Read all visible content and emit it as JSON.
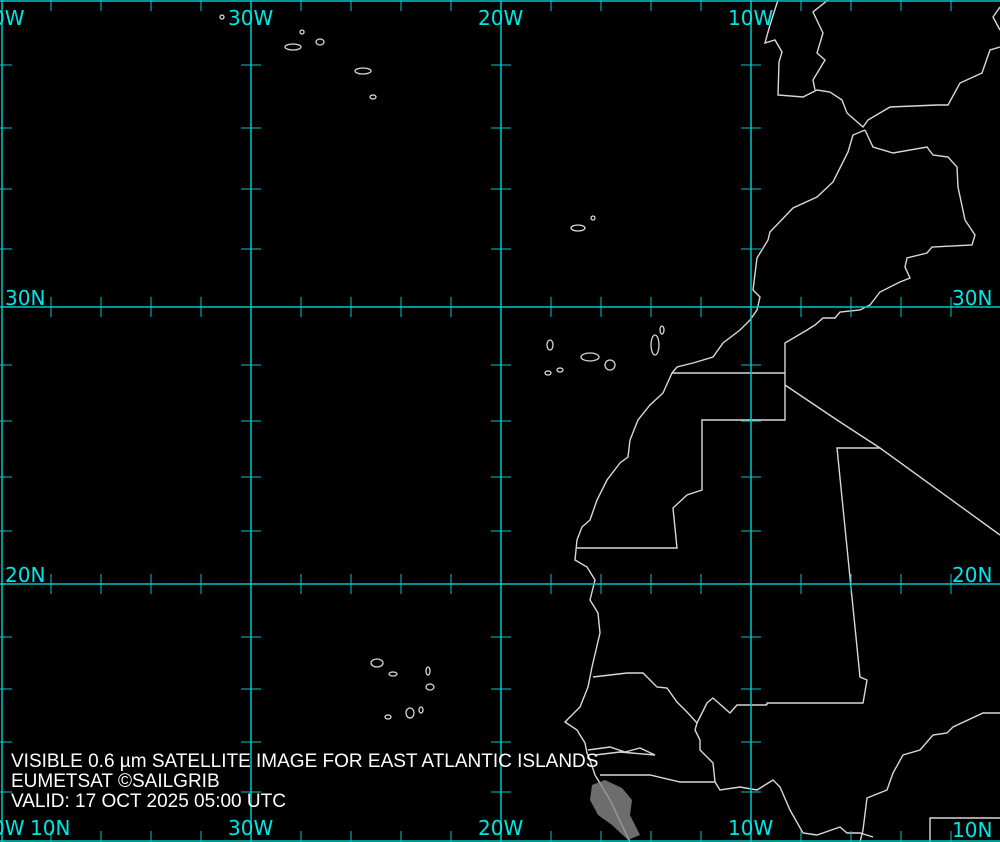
{
  "caption": {
    "line1": "VISIBLE 0.6 µm SATELLITE IMAGE FOR EAST ATLANTIC ISLANDS",
    "line2": "EUMETSAT ©SAILGRIB",
    "line3": "VALID:  17 OCT 2025 05:00 UTC"
  },
  "grid_labels": {
    "top": [
      "0W",
      "30W",
      "20W",
      "10W"
    ],
    "bottom": [
      "0W",
      "30W",
      "20W",
      "10W"
    ],
    "left": [
      "30N",
      "20N",
      "10N"
    ],
    "right": [
      "30N",
      "20N",
      "10N"
    ]
  },
  "colors": {
    "background": "#000000",
    "grid": "#00c8c8",
    "grid_label": "#00e6e6",
    "coastline": "#d8d8d8",
    "caption": "#ffffff",
    "cloud_land": "#888888"
  }
}
